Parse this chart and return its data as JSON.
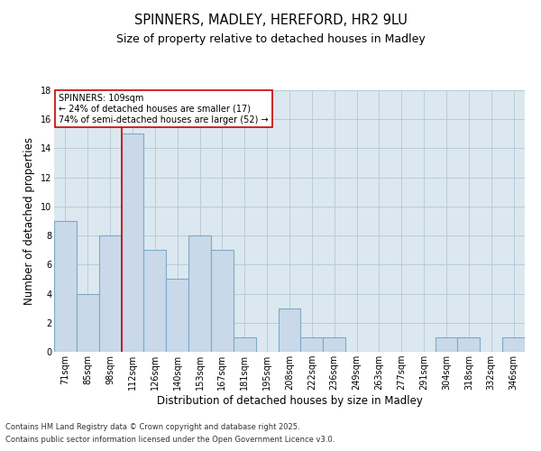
{
  "title1": "SPINNERS, MADLEY, HEREFORD, HR2 9LU",
  "title2": "Size of property relative to detached houses in Madley",
  "xlabel": "Distribution of detached houses by size in Madley",
  "ylabel": "Number of detached properties",
  "categories": [
    "71sqm",
    "85sqm",
    "98sqm",
    "112sqm",
    "126sqm",
    "140sqm",
    "153sqm",
    "167sqm",
    "181sqm",
    "195sqm",
    "208sqm",
    "222sqm",
    "236sqm",
    "249sqm",
    "263sqm",
    "277sqm",
    "291sqm",
    "304sqm",
    "318sqm",
    "332sqm",
    "346sqm"
  ],
  "values": [
    9,
    4,
    8,
    15,
    7,
    5,
    8,
    7,
    1,
    0,
    3,
    1,
    1,
    0,
    0,
    0,
    0,
    1,
    1,
    0,
    1
  ],
  "bar_color": "#c9d9ea",
  "bar_edge_color": "#7aaac8",
  "background_color": "#ffffff",
  "ax_background": "#dce8f0",
  "grid_color": "#b8ccd8",
  "red_line_x": 2.5,
  "annotation_text": "SPINNERS: 109sqm\n← 24% of detached houses are smaller (17)\n74% of semi-detached houses are larger (52) →",
  "annotation_box_color": "#ffffff",
  "annotation_box_edge": "#cc0000",
  "footnote1": "Contains HM Land Registry data © Crown copyright and database right 2025.",
  "footnote2": "Contains public sector information licensed under the Open Government Licence v3.0.",
  "ylim": [
    0,
    18
  ],
  "yticks": [
    0,
    2,
    4,
    6,
    8,
    10,
    12,
    14,
    16,
    18
  ],
  "title1_fontsize": 10.5,
  "title2_fontsize": 9,
  "ylabel_fontsize": 8.5,
  "xlabel_fontsize": 8.5,
  "tick_fontsize": 7,
  "annot_fontsize": 7,
  "footnote_fontsize": 6
}
